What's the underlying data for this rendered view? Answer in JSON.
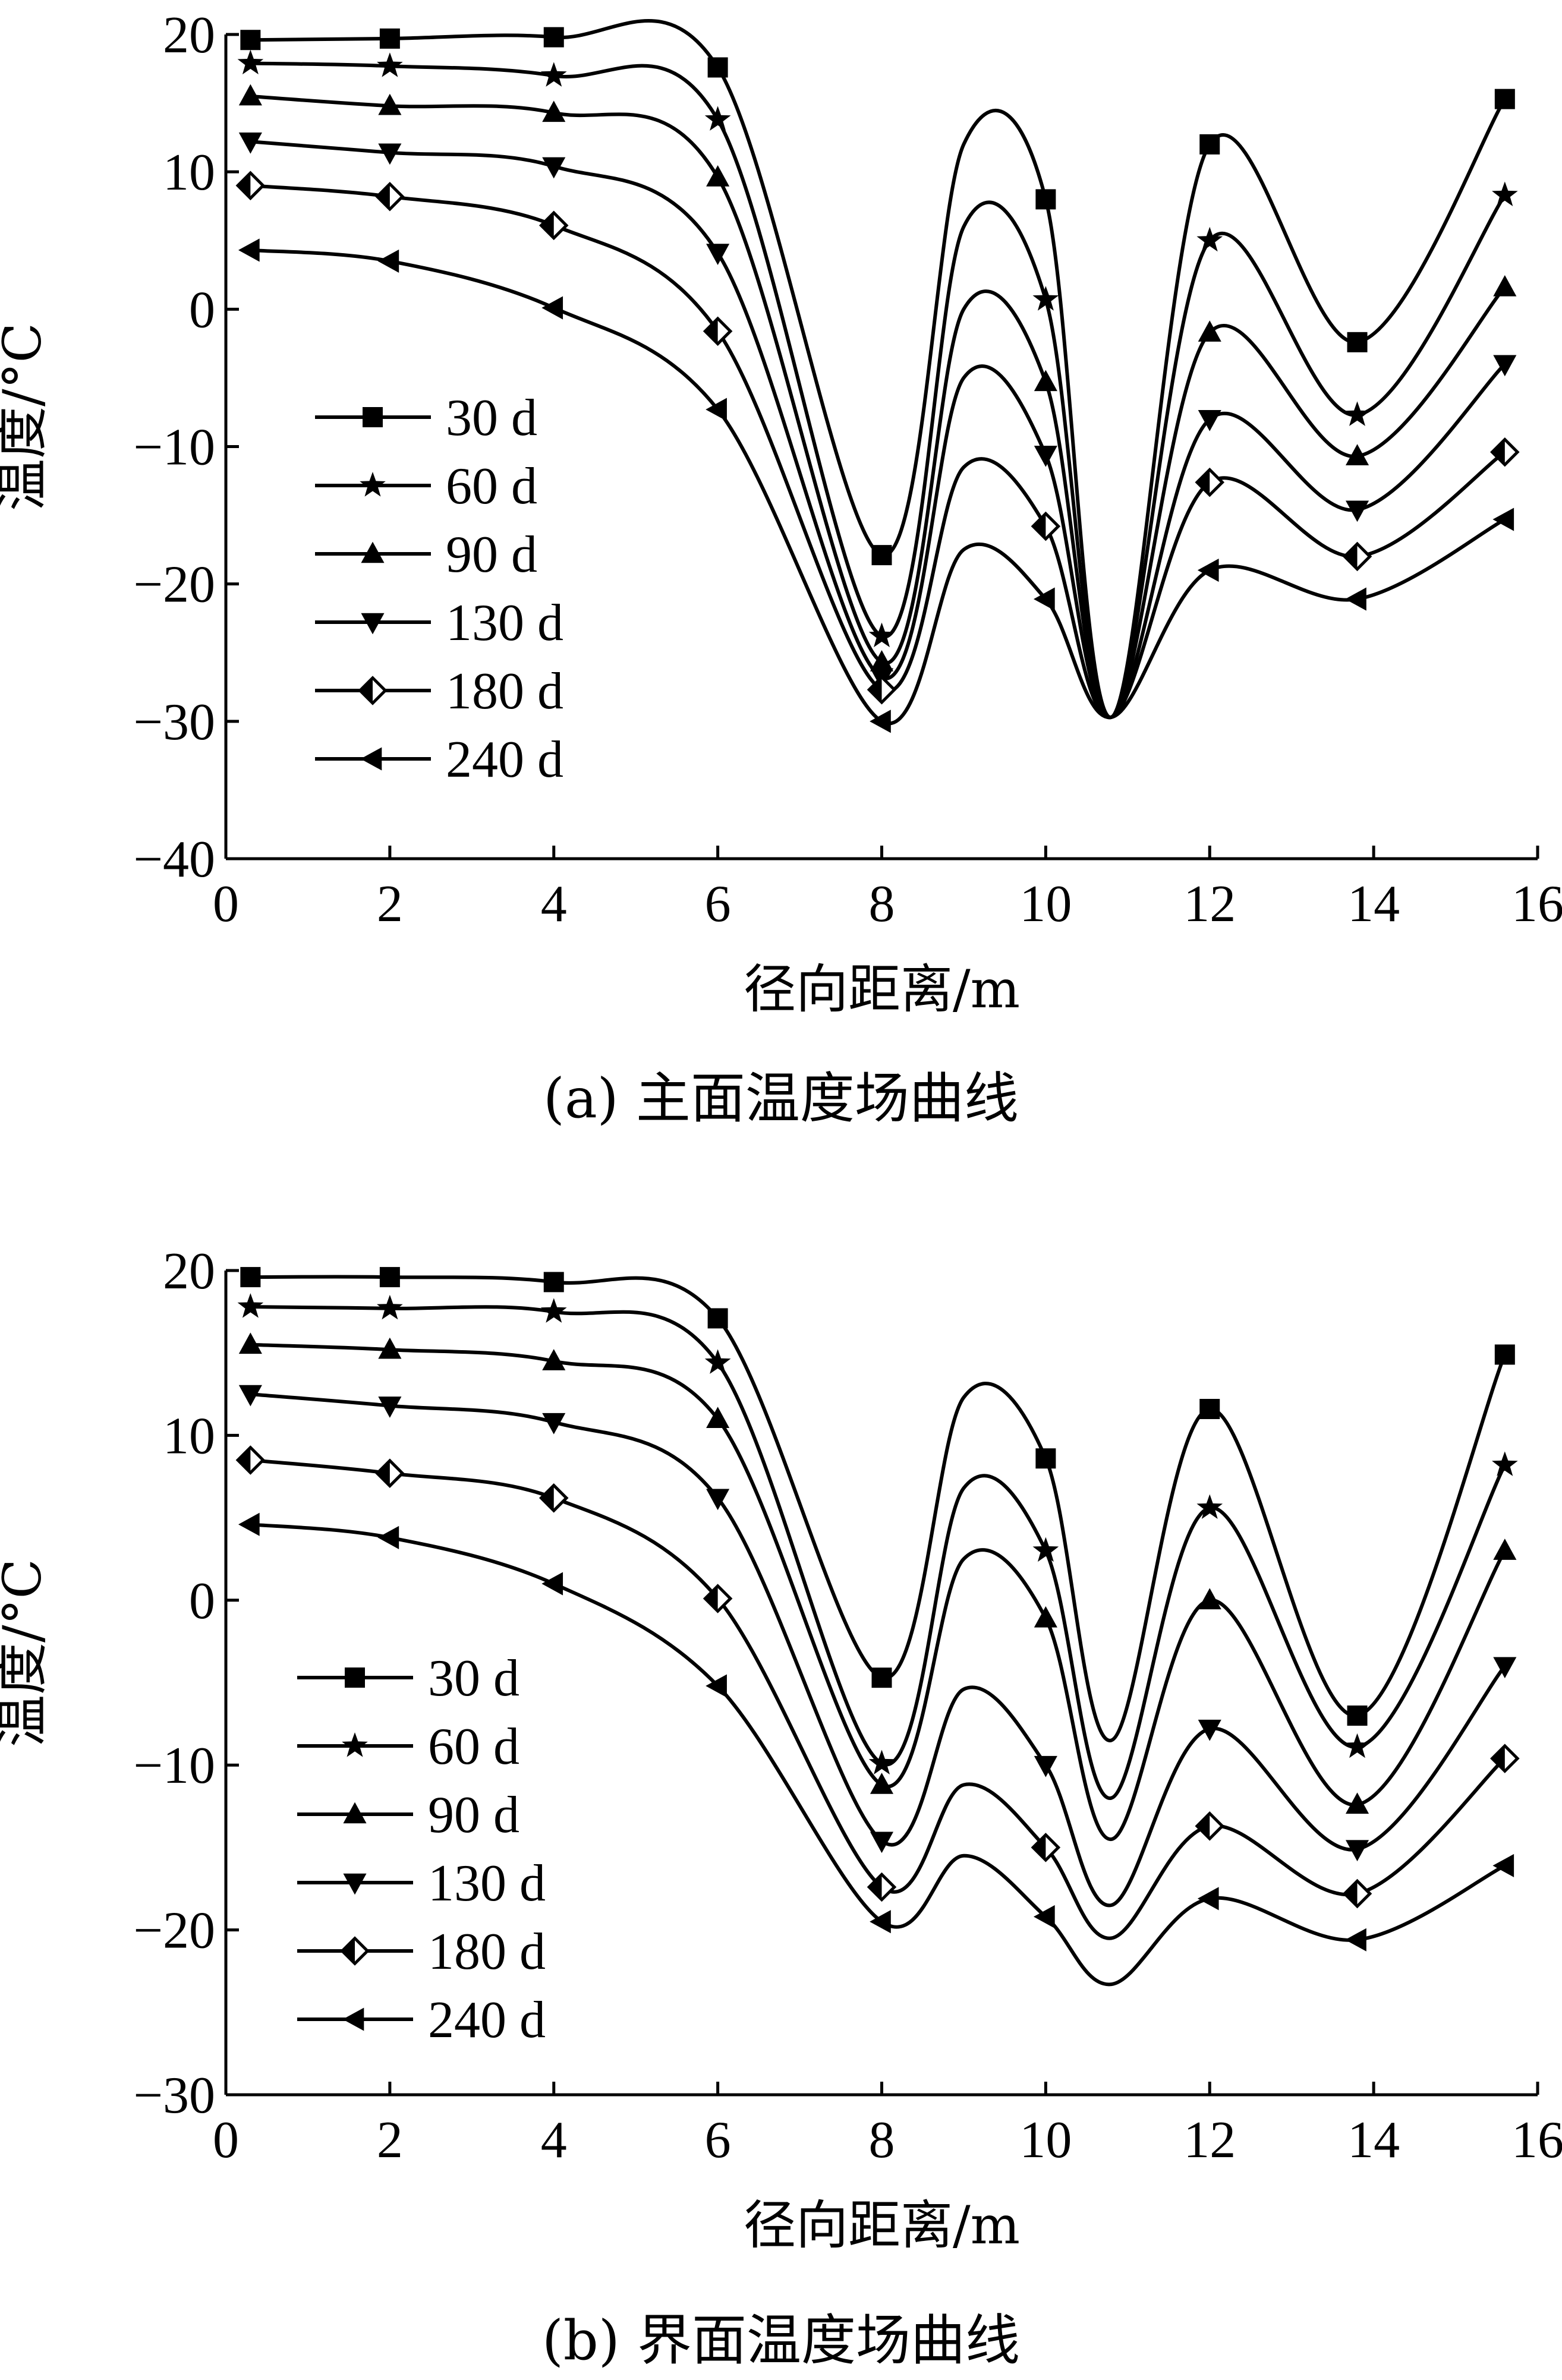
{
  "chart_data": [
    {
      "type": "line",
      "caption": "(a)  主面温度场曲线",
      "xlabel": "径向距离/m",
      "ylabel": "温度/°C",
      "xlim": [
        0,
        16
      ],
      "ylim": [
        -40,
        20
      ],
      "xticks": [
        0,
        2,
        4,
        6,
        8,
        10,
        12,
        14,
        16
      ],
      "xtick_labels": [
        "0",
        "2",
        "4",
        "6",
        "8",
        "10",
        "12",
        "14",
        "16"
      ],
      "yticks": [
        20,
        10,
        0,
        -10,
        -20,
        -30,
        -40
      ],
      "ytick_labels": [
        "20",
        "10",
        "0",
        "−10",
        "−20",
        "−30",
        "−40"
      ],
      "grid": false,
      "legend_position": "left-middle",
      "markers": [
        "square",
        "star",
        "triangle-up",
        "triangle-down",
        "diamond",
        "triangle-left"
      ],
      "series": [
        {
          "name": "30 d",
          "x": [
            0.3,
            2,
            4,
            6,
            8,
            9,
            10,
            10.8,
            12,
            13.8,
            15.6
          ],
          "y": [
            19.6,
            19.7,
            19.8,
            17.6,
            -17.9,
            12,
            8,
            -29.7,
            12,
            -2.4,
            15.3
          ]
        },
        {
          "name": "60 d",
          "x": [
            0.3,
            2,
            4,
            6,
            8,
            9,
            10,
            10.8,
            12,
            13.8,
            15.6
          ],
          "y": [
            17.9,
            17.7,
            17.0,
            13.8,
            -23.8,
            6,
            0.7,
            -29.7,
            5,
            -7.7,
            8.3
          ]
        },
        {
          "name": "90 d",
          "x": [
            0.3,
            2,
            4,
            6,
            8,
            9,
            10,
            10.8,
            12,
            13.8,
            15.6
          ],
          "y": [
            15.5,
            14.8,
            14.3,
            9.6,
            -25.7,
            0,
            -5.3,
            -29.7,
            -1.7,
            -10.7,
            1.6
          ]
        },
        {
          "name": "130 d",
          "x": [
            0.3,
            2,
            4,
            6,
            8,
            9,
            10,
            10.8,
            12,
            13.8,
            15.6
          ],
          "y": [
            12.2,
            11.4,
            10.4,
            4.1,
            -26.8,
            -5,
            -10.6,
            -29.7,
            -8,
            -14.6,
            -4
          ]
        },
        {
          "name": "180 d",
          "x": [
            0.3,
            2,
            4,
            6,
            8,
            9,
            10,
            10.8,
            12,
            13.8,
            15.6
          ],
          "y": [
            9.0,
            8.2,
            6.1,
            -1.6,
            -27.7,
            -11.5,
            -15.8,
            -29.7,
            -12.6,
            -18,
            -10.4
          ]
        },
        {
          "name": "240 d",
          "x": [
            0.3,
            2,
            4,
            6,
            8,
            9,
            10,
            10.8,
            12,
            13.8,
            15.6
          ],
          "y": [
            4.3,
            3.5,
            0.1,
            -7.3,
            -30.0,
            -17.5,
            -21.1,
            -29.7,
            -19,
            -21.1,
            -15.3
          ]
        }
      ]
    },
    {
      "type": "line",
      "caption": "(b)  界面温度场曲线",
      "xlabel": "径向距离/m",
      "ylabel": "温度/°C",
      "xlim": [
        0,
        16
      ],
      "ylim": [
        -30,
        20
      ],
      "xticks": [
        0,
        2,
        4,
        6,
        8,
        10,
        12,
        14,
        16
      ],
      "xtick_labels": [
        "0",
        "2",
        "4",
        "6",
        "8",
        "10",
        "12",
        "14",
        "16"
      ],
      "yticks": [
        20,
        10,
        0,
        -10,
        -20,
        -30
      ],
      "ytick_labels": [
        "20",
        "10",
        "0",
        "−10",
        "−20",
        "−30"
      ],
      "grid": false,
      "legend_position": "left-middle",
      "markers": [
        "square",
        "star",
        "triangle-up",
        "triangle-down",
        "diamond",
        "triangle-left"
      ],
      "series": [
        {
          "name": "30 d",
          "x": [
            0.3,
            2,
            4,
            6,
            8,
            9,
            10,
            10.8,
            12,
            13.8,
            15.6
          ],
          "y": [
            19.6,
            19.6,
            19.3,
            17.1,
            -4.7,
            12.3,
            8.6,
            -8.5,
            11.6,
            -7,
            14.9
          ]
        },
        {
          "name": "60 d",
          "x": [
            0.3,
            2,
            4,
            6,
            8,
            9,
            10,
            10.8,
            12,
            13.8,
            15.6
          ],
          "y": [
            17.8,
            17.7,
            17.5,
            14.4,
            -9.9,
            6.8,
            3.0,
            -12,
            5.6,
            -8.9,
            8.2
          ]
        },
        {
          "name": "90 d",
          "x": [
            0.3,
            2,
            4,
            6,
            8,
            9,
            10,
            10.8,
            12,
            13.8,
            15.6
          ],
          "y": [
            15.5,
            15.2,
            14.5,
            11.0,
            -11.2,
            2.5,
            -1.1,
            -14.5,
            0.0,
            -12.4,
            3.0
          ]
        },
        {
          "name": "130 d",
          "x": [
            0.3,
            2,
            4,
            6,
            8,
            9,
            10,
            10.8,
            12,
            13.8,
            15.6
          ],
          "y": [
            12.5,
            11.8,
            10.8,
            6.2,
            -14.6,
            -5.4,
            -10.0,
            -18.5,
            -7.8,
            -15.1,
            -4.0
          ]
        },
        {
          "name": "180 d",
          "x": [
            0.3,
            2,
            4,
            6,
            8,
            9,
            10,
            10.8,
            12,
            13.8,
            15.6
          ],
          "y": [
            8.5,
            7.7,
            6.2,
            0.1,
            -17.4,
            -11.2,
            -15.0,
            -20.5,
            -13.7,
            -17.8,
            -9.6
          ]
        },
        {
          "name": "240 d",
          "x": [
            0.3,
            2,
            4,
            6,
            8,
            9,
            10,
            10.8,
            12,
            13.8,
            15.6
          ],
          "y": [
            4.6,
            3.8,
            1.0,
            -5.2,
            -19.5,
            -15.5,
            -19.2,
            -23.3,
            -18.1,
            -20.6,
            -16.1
          ]
        }
      ]
    }
  ]
}
